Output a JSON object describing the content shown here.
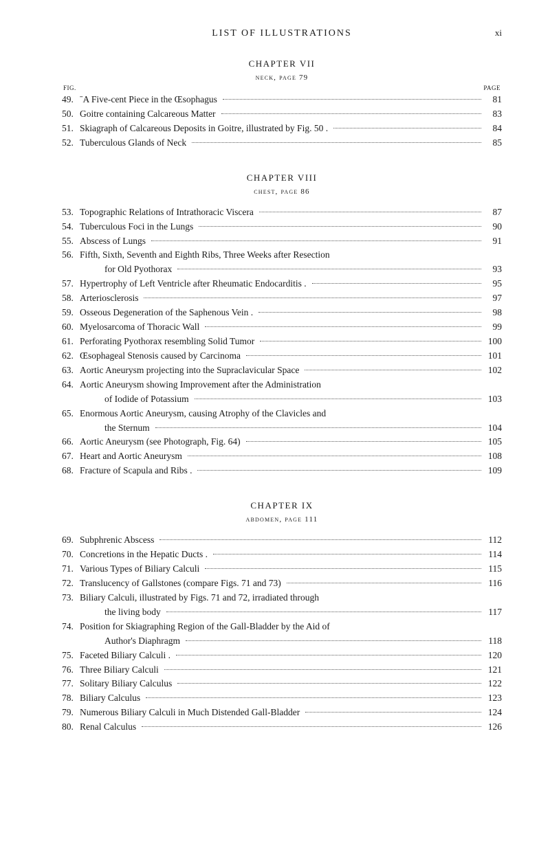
{
  "runningTitle": "LIST OF ILLUSTRATIONS",
  "romanPage": "xi",
  "columnLabels": {
    "left": "FIG.",
    "right": "PAGE"
  },
  "typography": {
    "body_font_family": "Georgia, 'Times New Roman', serif",
    "body_color": "#1a1a1a",
    "background_color": "#ffffff",
    "running_title_fontsize": 14,
    "chapter_heading_fontsize": 13,
    "entry_fontsize": 13.5,
    "leader_color": "#5a5a5a"
  },
  "sections": [
    {
      "chapter": "CHAPTER VII",
      "subtitle": "neck, page 79",
      "showColLabels": true,
      "entries": [
        {
          "fig": "49.",
          "label": "ˉA Five-cent Piece in the Œsophagus",
          "page": "81"
        },
        {
          "fig": "50.",
          "label": "Goitre containing Calcareous Matter",
          "page": "83"
        },
        {
          "fig": "51.",
          "label": "Skiagraph of Calcareous Deposits in Goitre, illustrated by Fig. 50 .",
          "page": "84"
        },
        {
          "fig": "52.",
          "label": "Tuberculous Glands of Neck",
          "page": "85"
        }
      ]
    },
    {
      "chapter": "CHAPTER VIII",
      "subtitle": "chest, page 86",
      "showColLabels": false,
      "entries": [
        {
          "fig": "53.",
          "label": "Topographic Relations of Intrathoracic Viscera",
          "page": "87"
        },
        {
          "fig": "54.",
          "label": "Tuberculous Foci in the Lungs",
          "page": "90"
        },
        {
          "fig": "55.",
          "label": "Abscess of Lungs",
          "page": "91"
        },
        {
          "fig": "56.",
          "label": "Fifth, Sixth, Seventh and Eighth Ribs, Three Weeks after Resection",
          "cont": "for Old Pyothorax",
          "page": "93"
        },
        {
          "fig": "57.",
          "label": "Hypertrophy of Left Ventricle after Rheumatic Endocarditis .",
          "page": "95"
        },
        {
          "fig": "58.",
          "label": "Arteriosclerosis",
          "page": "97"
        },
        {
          "fig": "59.",
          "label": "Osseous Degeneration of the Saphenous Vein .",
          "page": "98"
        },
        {
          "fig": "60.",
          "label": "Myelosarcoma of Thoracic Wall",
          "page": "99"
        },
        {
          "fig": "61.",
          "label": "Perforating Pyothorax resembling Solid Tumor",
          "page": "100"
        },
        {
          "fig": "62.",
          "label": "Œsophageal Stenosis caused by Carcinoma",
          "page": "101"
        },
        {
          "fig": "63.",
          "label": "Aortic Aneurysm projecting into the Supraclavicular Space",
          "page": "102"
        },
        {
          "fig": "64.",
          "label": "Aortic Aneurysm showing Improvement after the Administration",
          "cont": "of Iodide of Potassium",
          "page": "103"
        },
        {
          "fig": "65.",
          "label": "Enormous Aortic Aneurysm, causing Atrophy of the Clavicles and",
          "cont": "the Sternum",
          "page": "104"
        },
        {
          "fig": "66.",
          "label": "Aortic Aneurysm (see Photograph, Fig. 64)",
          "page": "105"
        },
        {
          "fig": "67.",
          "label": "Heart and Aortic Aneurysm",
          "page": "108"
        },
        {
          "fig": "68.",
          "label": "Fracture of Scapula and Ribs .",
          "page": "109"
        }
      ]
    },
    {
      "chapter": "CHAPTER IX",
      "subtitle": "abdomen, page 111",
      "showColLabels": false,
      "entries": [
        {
          "fig": "69.",
          "label": "Subphrenic Abscess",
          "page": "112"
        },
        {
          "fig": "70.",
          "label": "Concretions in the Hepatic Ducts .",
          "page": "114"
        },
        {
          "fig": "71.",
          "label": "Various Types of Biliary Calculi",
          "page": "115"
        },
        {
          "fig": "72.",
          "label": "Translucency of Gallstones (compare Figs. 71 and 73)",
          "page": "116"
        },
        {
          "fig": "73.",
          "label": "Biliary Calculi, illustrated by Figs. 71 and 72, irradiated through",
          "cont": "the living body",
          "page": "117"
        },
        {
          "fig": "74.",
          "label": "Position for Skiagraphing Region of the Gall-Bladder by the Aid of",
          "cont": "Author's Diaphragm",
          "page": "118"
        },
        {
          "fig": "75.",
          "label": "Faceted Biliary Calculi .",
          "page": "120"
        },
        {
          "fig": "76.",
          "label": "Three Biliary Calculi",
          "page": "121"
        },
        {
          "fig": "77.",
          "label": "Solitary Biliary Calculus",
          "page": "122"
        },
        {
          "fig": "78.",
          "label": "Biliary Calculus",
          "page": "123"
        },
        {
          "fig": "79.",
          "label": "Numerous Biliary Calculi in Much Distended Gall-Bladder",
          "page": "124"
        },
        {
          "fig": "80.",
          "label": "Renal Calculus",
          "page": "126"
        }
      ]
    }
  ]
}
